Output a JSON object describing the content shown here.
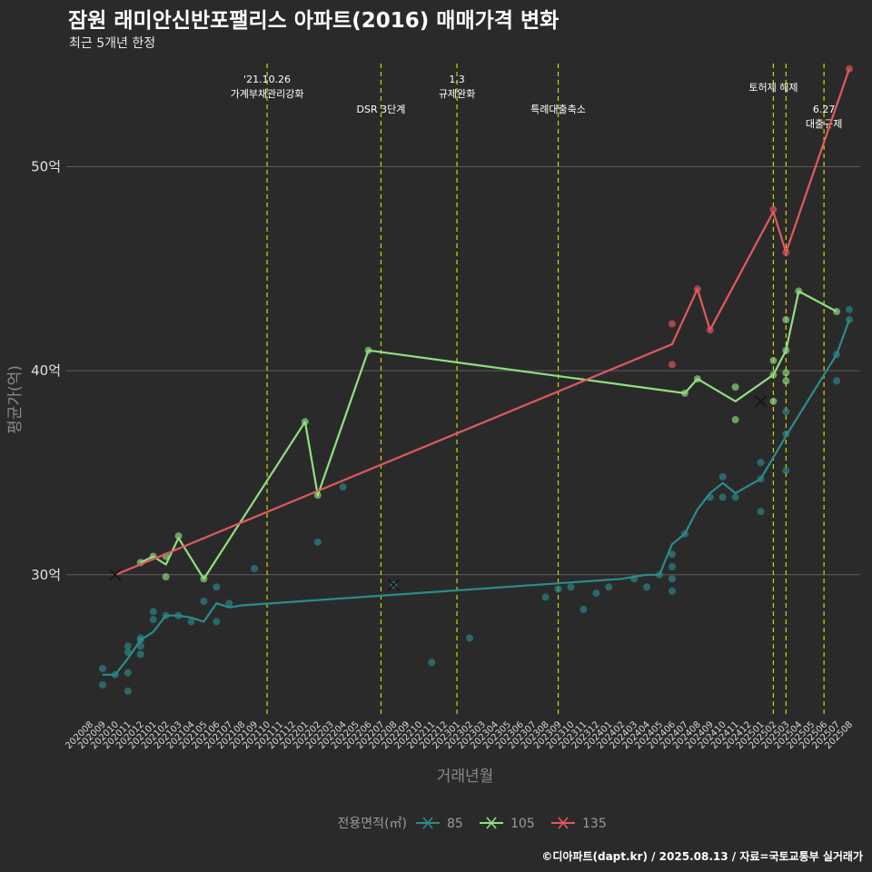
{
  "title": "잠원 래미안신반포팰리스 아파트(2016) 매매가격 변화",
  "subtitle": "최근 5개년 한정",
  "caption": "©디아파트(dapt.kr) / 2025.08.13 / 자료=국토교통부 실거래가",
  "colors": {
    "background": "#2b2a2b",
    "grid": "#5c5c5c",
    "event_line": "#d4d400",
    "s85": "#2a8c8a",
    "s105": "#8fe07f",
    "s135": "#e05a5f"
  },
  "chart_data": {
    "type": "line",
    "xlabel": "거래년월",
    "ylabel": "평균가(억)",
    "ylim": [
      23,
      55.5
    ],
    "yticks": [
      30,
      40,
      50
    ],
    "ytick_labels": [
      "30억",
      "40억",
      "50억"
    ],
    "months": [
      "202008",
      "202009",
      "202010",
      "202011",
      "202012",
      "202101",
      "202102",
      "202103",
      "202104",
      "202105",
      "202106",
      "202107",
      "202108",
      "202109",
      "202110",
      "202111",
      "202112",
      "202201",
      "202202",
      "202203",
      "202204",
      "202205",
      "202206",
      "202207",
      "202208",
      "202209",
      "202210",
      "202211",
      "202212",
      "202301",
      "202302",
      "202303",
      "202304",
      "202305",
      "202306",
      "202307",
      "202308",
      "202309",
      "202310",
      "202311",
      "202312",
      "202401",
      "202402",
      "202403",
      "202404",
      "202405",
      "202406",
      "202407",
      "202408",
      "202409",
      "202410",
      "202411",
      "202412",
      "202501",
      "202502",
      "202503",
      "202504",
      "202505",
      "202506",
      "202507",
      "202508"
    ],
    "legend_title": "전용면적(㎡)",
    "legend_position": "bottom",
    "grid": true,
    "events": [
      {
        "month": "202110",
        "lines": [
          "'21.10.26",
          "가계부채관리강화"
        ],
        "row": 0
      },
      {
        "month": "202207",
        "lines": [
          "DSR 3단계"
        ],
        "row": 2
      },
      {
        "month": "202301",
        "lines": [
          "1.3",
          "규제완화"
        ],
        "row": 0
      },
      {
        "month": "202309",
        "lines": [
          "특례대출축소"
        ],
        "row": 2
      },
      {
        "month": "202502",
        "lines": [
          "토허제 해제"
        ],
        "row": 1
      },
      {
        "month": "202503",
        "lines": [],
        "row": 1
      },
      {
        "month": "202506",
        "lines": [
          "6.27",
          "대출규제"
        ],
        "row": 2
      }
    ],
    "series": [
      {
        "name": "85",
        "color": "#2a8c8a",
        "line": [
          [
            1,
            25.1
          ],
          [
            2,
            25.1
          ],
          [
            3,
            25.9
          ],
          [
            4,
            26.8
          ],
          [
            5,
            27.2
          ],
          [
            6,
            28.0
          ],
          [
            7,
            28.0
          ],
          [
            8,
            27.9
          ],
          [
            9,
            27.7
          ],
          [
            10,
            28.6
          ],
          [
            11,
            28.4
          ],
          [
            12,
            28.5
          ],
          [
            42,
            29.8
          ],
          [
            43,
            29.9
          ],
          [
            44,
            30.0
          ],
          [
            45,
            30.0
          ],
          [
            46,
            31.5
          ],
          [
            47,
            32.0
          ],
          [
            48,
            33.2
          ],
          [
            49,
            34.0
          ],
          [
            50,
            34.5
          ],
          [
            51,
            34.0
          ],
          [
            53,
            34.7
          ],
          [
            55,
            36.8
          ],
          [
            59,
            40.8
          ],
          [
            60,
            42.5
          ]
        ],
        "points": [
          [
            1,
            25.4
          ],
          [
            1,
            24.6
          ],
          [
            2,
            25.1
          ],
          [
            3,
            26.5
          ],
          [
            3,
            26.2
          ],
          [
            3,
            25.2
          ],
          [
            3,
            24.3
          ],
          [
            4,
            26.9
          ],
          [
            4,
            26.1
          ],
          [
            4,
            26.5
          ],
          [
            4,
            26.8
          ],
          [
            5,
            28.2
          ],
          [
            5,
            27.8
          ],
          [
            6,
            28.0
          ],
          [
            7,
            28.0
          ],
          [
            8,
            27.7
          ],
          [
            9,
            28.7
          ],
          [
            10,
            29.4
          ],
          [
            10,
            27.7
          ],
          [
            11,
            28.6
          ],
          [
            13,
            30.3
          ],
          [
            18,
            31.6
          ],
          [
            20,
            34.3
          ],
          [
            24,
            29.5
          ],
          [
            27,
            25.7
          ],
          [
            30,
            26.9
          ],
          [
            36,
            28.9
          ],
          [
            37,
            29.3
          ],
          [
            38,
            29.4
          ],
          [
            39,
            28.3
          ],
          [
            40,
            29.1
          ],
          [
            41,
            29.4
          ],
          [
            43,
            29.8
          ],
          [
            44,
            29.4
          ],
          [
            45,
            30.0
          ],
          [
            46,
            30.4
          ],
          [
            46,
            31.0
          ],
          [
            46,
            29.8
          ],
          [
            46,
            29.2
          ],
          [
            47,
            32.0
          ],
          [
            49,
            33.8
          ],
          [
            50,
            34.8
          ],
          [
            50,
            33.8
          ],
          [
            51,
            33.8
          ],
          [
            53,
            35.5
          ],
          [
            53,
            34.7
          ],
          [
            53,
            33.1
          ],
          [
            55,
            38.0
          ],
          [
            55,
            36.9
          ],
          [
            55,
            35.1
          ],
          [
            59,
            39.5
          ],
          [
            59,
            40.8
          ],
          [
            60,
            43.0
          ],
          [
            60,
            42.5
          ]
        ],
        "x_marks": [
          [
            24,
            29.5
          ]
        ]
      },
      {
        "name": "105",
        "color": "#8fe07f",
        "line": [
          [
            4,
            30.6
          ],
          [
            5,
            30.9
          ],
          [
            6,
            30.5
          ],
          [
            7,
            31.8
          ],
          [
            9,
            29.8
          ],
          [
            17,
            37.5
          ],
          [
            18,
            33.9
          ],
          [
            22,
            41.0
          ],
          [
            47,
            38.9
          ],
          [
            48,
            39.6
          ],
          [
            51,
            38.5
          ],
          [
            54,
            39.8
          ],
          [
            55,
            41.0
          ],
          [
            56,
            43.9
          ],
          [
            59,
            42.9
          ]
        ],
        "points": [
          [
            4,
            30.6
          ],
          [
            5,
            30.9
          ],
          [
            6,
            30.9
          ],
          [
            6,
            29.9
          ],
          [
            7,
            31.9
          ],
          [
            9,
            29.8
          ],
          [
            17,
            37.5
          ],
          [
            18,
            33.9
          ],
          [
            22,
            41.0
          ],
          [
            47,
            38.9
          ],
          [
            48,
            39.6
          ],
          [
            51,
            39.2
          ],
          [
            51,
            37.6
          ],
          [
            54,
            40.5
          ],
          [
            54,
            39.8
          ],
          [
            54,
            38.5
          ],
          [
            55,
            42.5
          ],
          [
            55,
            41.0
          ],
          [
            55,
            39.9
          ],
          [
            55,
            39.5
          ],
          [
            56,
            43.9
          ],
          [
            59,
            42.9
          ]
        ],
        "x_marks": [
          [
            53,
            38.5
          ]
        ]
      },
      {
        "name": "135",
        "color": "#e05a5f",
        "line": [
          [
            2,
            30.0
          ],
          [
            46,
            41.3
          ],
          [
            48,
            44.0
          ],
          [
            49,
            42.0
          ],
          [
            54,
            47.8
          ],
          [
            55,
            45.8
          ],
          [
            60,
            54.8
          ]
        ],
        "points": [
          [
            46,
            42.3
          ],
          [
            46,
            40.3
          ],
          [
            48,
            44.0
          ],
          [
            49,
            42.0
          ],
          [
            54,
            47.9
          ],
          [
            55,
            45.8
          ],
          [
            60,
            54.8
          ]
        ],
        "x_marks": [
          [
            2,
            30.0
          ]
        ]
      }
    ]
  }
}
